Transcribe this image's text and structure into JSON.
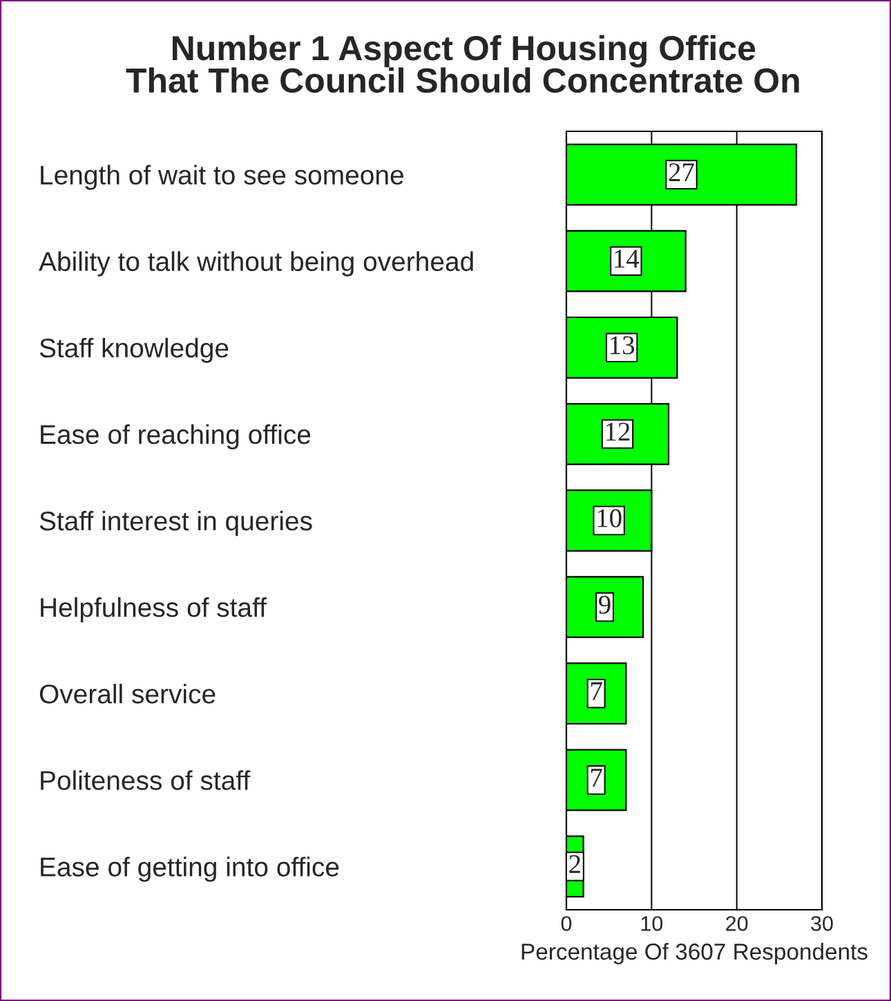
{
  "chart_data": {
    "type": "bar",
    "orientation": "horizontal",
    "title": "Number 1 Aspect Of Housing Office\nThat The Council Should Concentrate On",
    "xlabel": "Percentage Of 3607 Respondents",
    "categories": [
      "Length of wait to see someone",
      "Ability to talk without being overhead",
      "Staff knowledge",
      "Ease of reaching office",
      "Staff interest in queries",
      "Helpfulness of staff",
      "Overall service",
      "Politeness of staff",
      "Ease of getting into office"
    ],
    "values": [
      27,
      14,
      13,
      12,
      10,
      9,
      7,
      7,
      2
    ],
    "color": "#00ff00",
    "xlim": [
      0,
      30
    ],
    "xticks": [
      0,
      10,
      20,
      30
    ],
    "grid": "x",
    "data_labels": true
  }
}
